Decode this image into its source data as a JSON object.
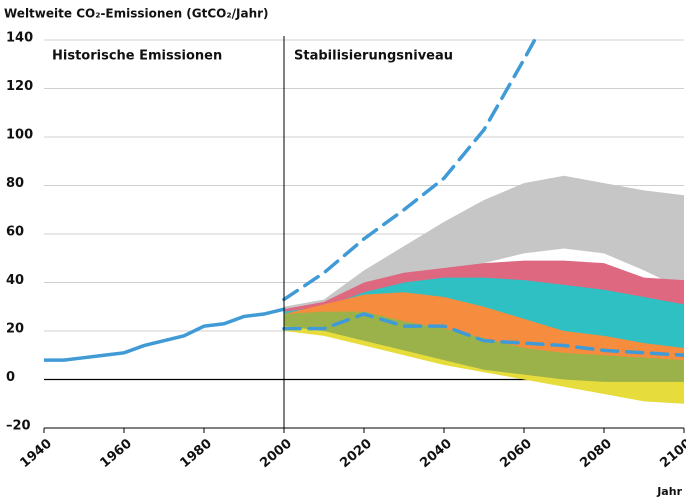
{
  "chart_data": {
    "type": "line",
    "title": "Weltweite CO₂-Emissionen (GtCO₂/Jahr)",
    "annotations": [
      "Historische Emissionen",
      "Stabilisierungsniveau"
    ],
    "xlabel": "Jahr",
    "xlim": [
      1940,
      2100
    ],
    "xticks": [
      1940,
      1960,
      1980,
      2000,
      2020,
      2040,
      2060,
      2080,
      2100
    ],
    "ylim": [
      -20,
      140
    ],
    "yticks": [
      {
        "value": -20,
        "label": "–20"
      },
      0,
      20,
      40,
      60,
      80,
      100,
      120,
      140
    ],
    "grid": true,
    "divider": 2000,
    "series": [
      {
        "type": "area",
        "color": "#c6c6c6",
        "x": [
          2000,
          2010,
          2020,
          2030,
          2040,
          2050,
          2060,
          2070,
          2080,
          2090,
          2100
        ],
        "upper": [
          30,
          33,
          45,
          55,
          65,
          74,
          81,
          84,
          81,
          78,
          76
        ],
        "lower": [
          28,
          30,
          36,
          42,
          45,
          48,
          52,
          54,
          52,
          45,
          37
        ]
      },
      {
        "type": "area",
        "color": "#de6880",
        "x": [
          2000,
          2010,
          2020,
          2030,
          2040,
          2050,
          2060,
          2070,
          2080,
          2090,
          2100
        ],
        "upper": [
          29,
          32,
          40,
          44,
          46,
          48,
          49,
          49,
          48,
          42,
          41
        ],
        "lower": [
          25,
          27,
          27,
          24,
          22,
          20,
          18,
          17,
          15,
          14,
          13
        ]
      },
      {
        "type": "area",
        "color": "#2fc0c4",
        "x": [
          2000,
          2010,
          2020,
          2030,
          2040,
          2050,
          2060,
          2070,
          2080,
          2090,
          2100
        ],
        "upper": [
          28,
          30,
          36,
          40,
          42,
          42,
          41,
          39,
          37,
          34,
          31
        ],
        "lower": [
          25,
          27,
          27,
          24,
          22,
          20,
          18,
          17,
          15,
          14,
          13
        ]
      },
      {
        "type": "area",
        "color": "#f68c3e",
        "x": [
          2000,
          2010,
          2020,
          2030,
          2040,
          2050,
          2060,
          2070,
          2080,
          2090,
          2100
        ],
        "upper": [
          27,
          31,
          35,
          36,
          34,
          30,
          25,
          20,
          18,
          15,
          13
        ],
        "lower": [
          24,
          23,
          20,
          17,
          14,
          11,
          8,
          6,
          4,
          3,
          3
        ]
      },
      {
        "type": "area",
        "color": "#e6dc3c",
        "x": [
          2000,
          2010,
          2020,
          2030,
          2040,
          2050,
          2060,
          2070,
          2080,
          2090,
          2100
        ],
        "upper": [
          26,
          26,
          22,
          18,
          14,
          10,
          7,
          5,
          3,
          2,
          2
        ],
        "lower": [
          20,
          18,
          14,
          10,
          6,
          3,
          0,
          -3,
          -6,
          -9,
          -10
        ]
      },
      {
        "type": "area",
        "color": "#9bb24a",
        "x": [
          2000,
          2010,
          2020,
          2030,
          2040,
          2050,
          2060,
          2070,
          2080,
          2090,
          2100
        ],
        "upper": [
          27,
          28,
          28,
          24,
          21,
          17,
          13,
          11,
          10,
          9,
          8
        ],
        "lower": [
          22,
          20,
          16,
          12,
          8,
          4,
          2,
          0,
          -1,
          -1,
          -1
        ]
      },
      {
        "type": "line",
        "color": "#3f9ad6",
        "dashed": false,
        "x": [
          1940,
          1945,
          1950,
          1955,
          1960,
          1965,
          1970,
          1975,
          1980,
          1985,
          1990,
          1995,
          2000
        ],
        "values": [
          8,
          8,
          9,
          10,
          11,
          14,
          16,
          18,
          22,
          23,
          26,
          27,
          29
        ]
      },
      {
        "type": "line",
        "color": "#3f9ad6",
        "dashed": true,
        "x": [
          2000,
          2010,
          2020,
          2030,
          2040,
          2050,
          2060,
          2063
        ],
        "values": [
          33,
          44,
          58,
          70,
          83,
          103,
          132,
          141
        ]
      },
      {
        "type": "line",
        "color": "#3f9ad6",
        "dashed": true,
        "x": [
          2000,
          2010,
          2020,
          2030,
          2040,
          2050,
          2060,
          2070,
          2080,
          2090,
          2100
        ],
        "values": [
          21,
          21,
          27,
          22,
          22,
          16,
          15,
          14,
          12,
          11,
          10
        ]
      }
    ]
  }
}
